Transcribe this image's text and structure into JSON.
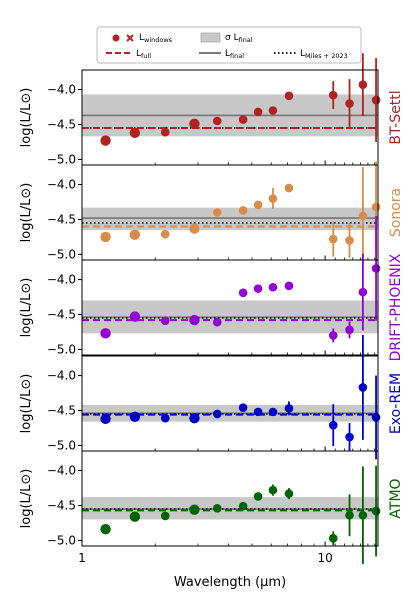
{
  "chart_data": {
    "type": "scatter",
    "xlabel": "Wavelength (μm)",
    "ylabel": "log(L/L⊙)",
    "xscale": "log",
    "xlim": [
      1.0,
      16.5
    ],
    "ylim": [
      -5.08,
      -3.72
    ],
    "x_ticks": [
      1,
      10
    ],
    "x_tick_labels": [
      "1",
      "10"
    ],
    "y_ticks": [
      -4.0,
      -4.5,
      -5.0
    ],
    "y_tick_labels": [
      "−4.0",
      "−4.5",
      "−5.0"
    ],
    "sigma_label": "σ L",
    "legend": {
      "placement": "top",
      "entries": [
        {
          "kind": "markers",
          "label": "L",
          "sub": "windows"
        },
        {
          "kind": "band",
          "label": "σ L",
          "sub": "final"
        },
        {
          "kind": "dashed",
          "label": "L",
          "sub": "full"
        },
        {
          "kind": "solid",
          "label": "L",
          "sub": "final"
        },
        {
          "kind": "dotted",
          "label": "L",
          "sub": "Miles + 2023"
        }
      ]
    },
    "miles_2023": -4.55,
    "panels": [
      {
        "model": "BT-Settl",
        "color": "#b22222",
        "l_full": -4.55,
        "l_final": -4.37,
        "band": [
          -4.67,
          -4.07
        ],
        "points": [
          {
            "x": 1.25,
            "y": -4.73,
            "err": 0.0,
            "size": "large"
          },
          {
            "x": 1.65,
            "y": -4.62,
            "err": 0.0,
            "size": "large"
          },
          {
            "x": 2.2,
            "y": -4.61,
            "err": 0.0,
            "size": "small"
          },
          {
            "x": 2.9,
            "y": -4.49,
            "err": 0.0,
            "size": "large"
          },
          {
            "x": 3.6,
            "y": -4.45,
            "err": 0.0,
            "size": "small"
          },
          {
            "x": 4.6,
            "y": -4.43,
            "err": 0.0,
            "size": "small"
          },
          {
            "x": 5.3,
            "y": -4.32,
            "err": 0.0,
            "size": "small"
          },
          {
            "x": 6.1,
            "y": -4.3,
            "err": 0.0,
            "size": "small"
          },
          {
            "x": 7.1,
            "y": -4.09,
            "err": 0.0,
            "size": "small"
          },
          {
            "x": 10.8,
            "y": -4.08,
            "err": 0.2,
            "size": "small"
          },
          {
            "x": 12.6,
            "y": -4.2,
            "err": 0.35,
            "size": "small"
          },
          {
            "x": 14.3,
            "y": -3.93,
            "err": 0.45,
            "size": "small"
          },
          {
            "x": 16.2,
            "y": -4.15,
            "err": 0.6,
            "size": "small"
          }
        ]
      },
      {
        "model": "Sonora",
        "color": "#d98c4a",
        "l_full": -4.6,
        "l_final": -4.48,
        "band": [
          -4.65,
          -4.33
        ],
        "points": [
          {
            "x": 1.25,
            "y": -4.75,
            "err": 0.0,
            "size": "large"
          },
          {
            "x": 1.65,
            "y": -4.72,
            "err": 0.0,
            "size": "large"
          },
          {
            "x": 2.2,
            "y": -4.71,
            "err": 0.0,
            "size": "small"
          },
          {
            "x": 2.9,
            "y": -4.63,
            "err": 0.0,
            "size": "large"
          },
          {
            "x": 3.6,
            "y": -4.4,
            "err": 0.0,
            "size": "small"
          },
          {
            "x": 4.6,
            "y": -4.37,
            "err": 0.0,
            "size": "small"
          },
          {
            "x": 5.3,
            "y": -4.29,
            "err": 0.0,
            "size": "small"
          },
          {
            "x": 6.1,
            "y": -4.2,
            "err": 0.15,
            "size": "small"
          },
          {
            "x": 7.1,
            "y": -4.05,
            "err": 0.0,
            "size": "small"
          },
          {
            "x": 10.8,
            "y": -4.78,
            "err": 0.25,
            "size": "small"
          },
          {
            "x": 12.6,
            "y": -4.8,
            "err": 0.25,
            "size": "small"
          },
          {
            "x": 14.3,
            "y": -4.45,
            "err": 0.7,
            "size": "small"
          },
          {
            "x": 16.2,
            "y": -4.32,
            "err": 0.65,
            "size": "small"
          }
        ]
      },
      {
        "model": "DRIFT-PHOENIX",
        "color": "#9400d3",
        "l_full": -4.58,
        "l_final": -4.54,
        "band": [
          -4.77,
          -4.3
        ],
        "points": [
          {
            "x": 1.25,
            "y": -4.77,
            "err": 0.0,
            "size": "large"
          },
          {
            "x": 1.65,
            "y": -4.53,
            "err": 0.0,
            "size": "large"
          },
          {
            "x": 2.2,
            "y": -4.59,
            "err": 0.0,
            "size": "small"
          },
          {
            "x": 2.9,
            "y": -4.58,
            "err": 0.0,
            "size": "large"
          },
          {
            "x": 3.6,
            "y": -4.61,
            "err": 0.0,
            "size": "small"
          },
          {
            "x": 4.6,
            "y": -4.19,
            "err": 0.0,
            "size": "small"
          },
          {
            "x": 5.3,
            "y": -4.13,
            "err": 0.0,
            "size": "small"
          },
          {
            "x": 6.1,
            "y": -4.11,
            "err": 0.0,
            "size": "small"
          },
          {
            "x": 7.1,
            "y": -4.09,
            "err": 0.0,
            "size": "small"
          },
          {
            "x": 10.8,
            "y": -4.8,
            "err": 0.1,
            "size": "small"
          },
          {
            "x": 12.6,
            "y": -4.72,
            "err": 0.12,
            "size": "small"
          },
          {
            "x": 14.3,
            "y": -4.18,
            "err": 0.55,
            "size": "small"
          },
          {
            "x": 16.2,
            "y": -3.84,
            "err": 0.75,
            "size": "small"
          }
        ]
      },
      {
        "model": "Exo-REM",
        "color": "#0000cd",
        "l_full": -4.56,
        "l_final": -4.54,
        "band": [
          -4.66,
          -4.42
        ],
        "points": [
          {
            "x": 1.25,
            "y": -4.62,
            "err": 0.0,
            "size": "large"
          },
          {
            "x": 1.65,
            "y": -4.59,
            "err": 0.0,
            "size": "large"
          },
          {
            "x": 2.2,
            "y": -4.61,
            "err": 0.0,
            "size": "small"
          },
          {
            "x": 2.9,
            "y": -4.61,
            "err": 0.0,
            "size": "large"
          },
          {
            "x": 3.6,
            "y": -4.55,
            "err": 0.0,
            "size": "small"
          },
          {
            "x": 4.6,
            "y": -4.46,
            "err": 0.0,
            "size": "small"
          },
          {
            "x": 5.3,
            "y": -4.52,
            "err": 0.0,
            "size": "small"
          },
          {
            "x": 6.1,
            "y": -4.52,
            "err": 0.05,
            "size": "small"
          },
          {
            "x": 7.1,
            "y": -4.47,
            "err": 0.1,
            "size": "small"
          },
          {
            "x": 10.8,
            "y": -4.71,
            "err": 0.3,
            "size": "small"
          },
          {
            "x": 12.6,
            "y": -4.88,
            "err": 0.2,
            "size": "small"
          },
          {
            "x": 14.3,
            "y": -4.17,
            "err": 0.75,
            "size": "small"
          },
          {
            "x": 16.2,
            "y": -4.6,
            "err": 0.6,
            "size": "small"
          }
        ]
      },
      {
        "model": "ATMO",
        "color": "#006400",
        "l_full": -4.57,
        "l_final": -4.55,
        "band": [
          -4.7,
          -4.38
        ],
        "points": [
          {
            "x": 1.25,
            "y": -4.84,
            "err": 0.0,
            "size": "large"
          },
          {
            "x": 1.65,
            "y": -4.66,
            "err": 0.0,
            "size": "large"
          },
          {
            "x": 2.2,
            "y": -4.65,
            "err": 0.0,
            "size": "small"
          },
          {
            "x": 2.9,
            "y": -4.56,
            "err": 0.0,
            "size": "large"
          },
          {
            "x": 3.6,
            "y": -4.54,
            "err": 0.0,
            "size": "small"
          },
          {
            "x": 4.6,
            "y": -4.51,
            "err": 0.0,
            "size": "small"
          },
          {
            "x": 5.3,
            "y": -4.37,
            "err": 0.0,
            "size": "small"
          },
          {
            "x": 6.1,
            "y": -4.28,
            "err": 0.08,
            "size": "small"
          },
          {
            "x": 7.1,
            "y": -4.33,
            "err": 0.08,
            "size": "small"
          },
          {
            "x": 10.8,
            "y": -4.97,
            "err": 0.1,
            "size": "small"
          },
          {
            "x": 12.6,
            "y": -4.64,
            "err": 0.3,
            "size": "small"
          },
          {
            "x": 14.3,
            "y": -4.64,
            "err": 0.7,
            "size": "small"
          },
          {
            "x": 16.2,
            "y": -4.58,
            "err": 0.65,
            "size": "small"
          }
        ]
      }
    ]
  }
}
